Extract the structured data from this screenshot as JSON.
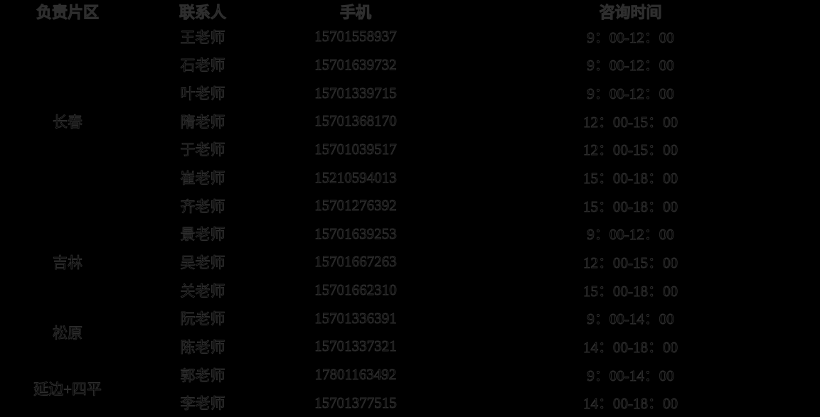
{
  "table": {
    "background_color": "#000000",
    "text_fill_color": "#000000",
    "text_edge_color": "#2e2e2e",
    "headers": [
      "负责片区",
      "联系人",
      "手机",
      "咨询时间"
    ],
    "regions": [
      {
        "name": "长春",
        "contacts": [
          {
            "name": "王老师",
            "phone": "15701558937",
            "time": "9：00-12：00"
          },
          {
            "name": "石老师",
            "phone": "15701639732",
            "time": "9：00-12：00"
          },
          {
            "name": "叶老师",
            "phone": "15701339715",
            "time": "9：00-12：00"
          },
          {
            "name": "隋老师",
            "phone": "15701368170",
            "time": "12：00-15：00"
          },
          {
            "name": "于老师",
            "phone": "15701039517",
            "time": "12：00-15：00"
          },
          {
            "name": "崔老师",
            "phone": "15210594013",
            "time": "15：00-18：00"
          },
          {
            "name": "齐老师",
            "phone": "15701276392",
            "time": "15：00-18：00"
          }
        ]
      },
      {
        "name": "吉林",
        "contacts": [
          {
            "name": "景老师",
            "phone": "15701639253",
            "time": "9：00-12：00"
          },
          {
            "name": "吴老师",
            "phone": "15701667263",
            "time": "12：00-15：00"
          },
          {
            "name": "关老师",
            "phone": "15701662310",
            "time": "15：00-18：00"
          }
        ]
      },
      {
        "name": "松原",
        "contacts": [
          {
            "name": "阮老师",
            "phone": "15701336391",
            "time": "9：00-14：00"
          },
          {
            "name": "陈老师",
            "phone": "15701337321",
            "time": "14：00-18：00"
          }
        ]
      },
      {
        "name": "延边+四平",
        "contacts": [
          {
            "name": "郭老师",
            "phone": "17801163492",
            "time": "9：00-14：00"
          },
          {
            "name": "李老师",
            "phone": "15701377515",
            "time": "14：00-18：00"
          }
        ]
      }
    ]
  }
}
